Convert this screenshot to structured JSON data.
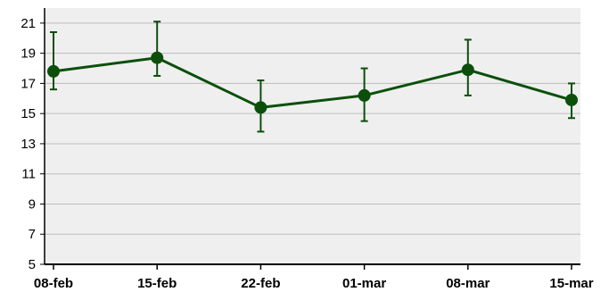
{
  "chart_data": {
    "type": "line",
    "categories": [
      "08-feb",
      "15-feb",
      "22-feb",
      "01-mar",
      "08-mar",
      "15-mar"
    ],
    "series": [
      {
        "values": [
          17.8,
          18.7,
          15.4,
          16.2,
          17.9,
          15.9
        ],
        "error_low": [
          16.6,
          17.5,
          13.8,
          14.5,
          16.2,
          14.7
        ],
        "error_high": [
          20.4,
          21.1,
          17.2,
          18.0,
          19.9,
          17.0
        ],
        "color": "#0b4f0b"
      }
    ],
    "ylim": [
      5,
      22
    ],
    "y_ticks": [
      5,
      7,
      9,
      11,
      13,
      15,
      17,
      19,
      21
    ],
    "grid": true,
    "plot_background": "#efefef",
    "gridline_color": "#bdbdbd",
    "axis_color": "#000000"
  }
}
